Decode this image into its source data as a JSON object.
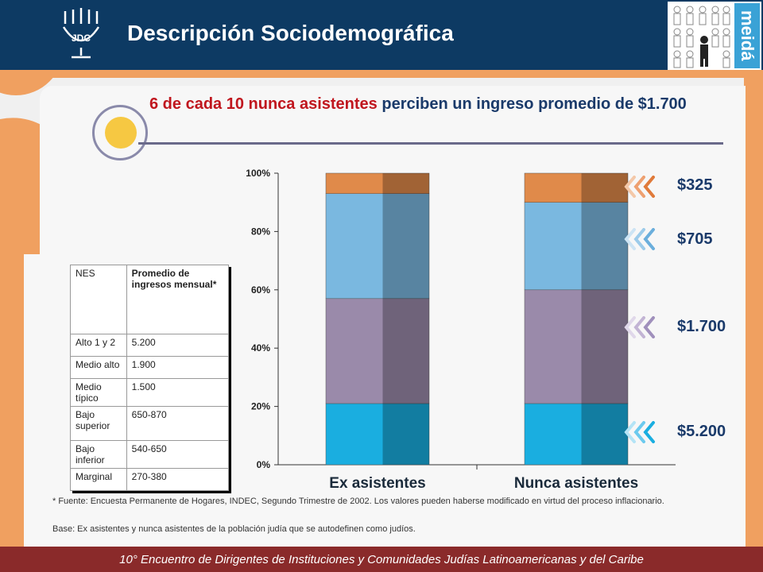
{
  "header": {
    "title": "Descripción Sociodemográfica",
    "logo_text": "JDC",
    "brand_word": "meidá"
  },
  "headline": {
    "highlight": "6 de cada 10 nunca asistentes",
    "rest": " perciben un ingreso promedio de $1.700"
  },
  "income_table": {
    "headers": [
      "NES",
      "Promedio de ingresos mensual*"
    ],
    "rows": [
      [
        "Alto 1 y 2",
        "5.200"
      ],
      [
        "Medio alto",
        "1.900"
      ],
      [
        "Medio típico",
        "1.500"
      ],
      [
        "Bajo superior",
        "650-870"
      ],
      [
        "Bajo inferior",
        "540-650"
      ],
      [
        "Marginal",
        "270-380"
      ]
    ]
  },
  "chart_data": {
    "type": "bar",
    "stacked": true,
    "categories": [
      "Ex asistentes",
      "Nunca asistentes"
    ],
    "series": [
      {
        "name": "$5.200",
        "color": "#1aaee0",
        "values": [
          21,
          21
        ]
      },
      {
        "name": "$1.700",
        "color": "#9a8aaa",
        "values": [
          36,
          39
        ]
      },
      {
        "name": "$705",
        "color": "#7ab8e0",
        "values": [
          36,
          30
        ]
      },
      {
        "name": "$325",
        "color": "#e08a4a",
        "values": [
          7,
          10
        ]
      }
    ],
    "ylim": [
      0,
      100
    ],
    "yticks": [
      "0%",
      "20%",
      "40%",
      "60%",
      "80%",
      "100%"
    ],
    "ytick_values": [
      0,
      20,
      40,
      60,
      80,
      100
    ],
    "grid": false
  },
  "price_labels": [
    "$325",
    "$705",
    "$1.700",
    "$5.200"
  ],
  "footnote": "* Fuente: Encuesta Permanente de Hogares, INDEC, Segundo Trimestre de 2002. Los valores pueden haberse modificado en virtud del proceso inflacionario.",
  "base_note": "Base: Ex asistentes y nunca asistentes de la población judía que se autodefinen como judíos.",
  "footer": "10° Encuentro de Dirigentes de Instituciones y Comunidades Judías Latinoamericanas y del Caribe",
  "colors": {
    "header_bg": "#0d3a63",
    "accent_orange": "#f0a060",
    "highlight_red": "#c0161e",
    "footer_bg": "#8a2a2a"
  }
}
